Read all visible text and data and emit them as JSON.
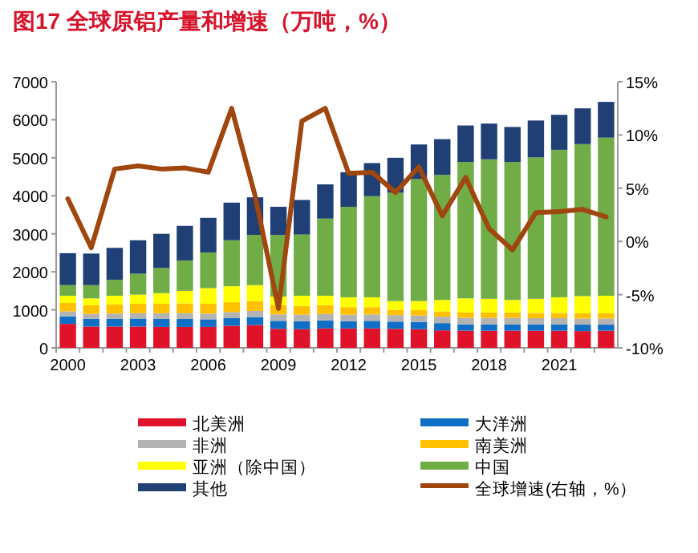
{
  "chart_data": {
    "type": "bar",
    "title": "图17 全球原铝产量和增速（万吨，%）",
    "stacked": true,
    "legend": "bottom",
    "grid": false,
    "categories": [
      "2000",
      null,
      null,
      "2003",
      null,
      null,
      "2006",
      null,
      null,
      "2009",
      null,
      null,
      "2012",
      null,
      null,
      "2015",
      null,
      null,
      "2018",
      null,
      null,
      "2021",
      null,
      null
    ],
    "series": [
      {
        "name": "北美洲",
        "color": "#e0122a",
        "values": [
          630,
          560,
          560,
          560,
          550,
          550,
          550,
          580,
          600,
          500,
          490,
          510,
          510,
          510,
          500,
          490,
          460,
          450,
          450,
          450,
          450,
          450,
          440,
          450
        ]
      },
      {
        "name": "大洋洲",
        "color": "#0f6fc6",
        "values": [
          200,
          200,
          200,
          210,
          210,
          210,
          200,
          200,
          210,
          210,
          210,
          210,
          190,
          200,
          190,
          190,
          190,
          170,
          170,
          170,
          170,
          170,
          170,
          160
        ]
      },
      {
        "name": "非洲",
        "color": "#b3b3b3",
        "values": [
          130,
          130,
          140,
          140,
          150,
          150,
          150,
          160,
          160,
          170,
          170,
          170,
          170,
          170,
          170,
          170,
          170,
          170,
          170,
          170,
          160,
          160,
          160,
          160
        ]
      },
      {
        "name": "南美洲",
        "color": "#ffc000",
        "values": [
          220,
          230,
          240,
          250,
          250,
          260,
          260,
          260,
          260,
          240,
          230,
          230,
          200,
          190,
          140,
          140,
          140,
          140,
          140,
          140,
          140,
          140,
          140,
          140
        ]
      },
      {
        "name": "亚洲（除中国）",
        "color": "#ffff00",
        "values": [
          190,
          180,
          230,
          240,
          280,
          330,
          410,
          420,
          420,
          230,
          270,
          250,
          260,
          260,
          230,
          240,
          300,
          370,
          360,
          330,
          370,
          410,
          450,
          460
        ]
      },
      {
        "name": "中国",
        "color": "#70ad47",
        "values": [
          280,
          350,
          420,
          550,
          660,
          800,
          940,
          1210,
          1320,
          1620,
          1610,
          2030,
          2380,
          2660,
          2850,
          3210,
          3290,
          3590,
          3670,
          3630,
          3720,
          3880,
          4000,
          4160
        ]
      },
      {
        "name": "其他",
        "color": "#1f3f75",
        "values": [
          840,
          830,
          840,
          880,
          900,
          910,
          910,
          990,
          990,
          740,
          910,
          900,
          910,
          870,
          920,
          910,
          940,
          960,
          940,
          920,
          970,
          920,
          940,
          940
        ]
      },
      {
        "name": "全球增速(右轴，%）",
        "type": "line",
        "axis": "y2",
        "color": "#a0460f",
        "values": [
          4.0,
          -0.6,
          6.8,
          7.1,
          6.8,
          6.9,
          6.5,
          12.5,
          4.3,
          -6.3,
          11.3,
          12.5,
          6.4,
          6.5,
          4.6,
          7.0,
          2.4,
          6.0,
          1.2,
          -0.8,
          2.7,
          2.8,
          3.0,
          2.3
        ]
      }
    ],
    "ylim": [
      0,
      7000
    ],
    "yticks": [
      0,
      1000,
      2000,
      3000,
      4000,
      5000,
      6000,
      7000
    ],
    "y2lim": [
      -10,
      15
    ],
    "y2ticks": [
      {
        "value": -10,
        "label": "-10%"
      },
      {
        "value": -5,
        "label": "-5%"
      },
      {
        "value": 0,
        "label": "0%"
      },
      {
        "value": 5,
        "label": "5%"
      },
      {
        "value": 10,
        "label": "10%"
      },
      {
        "value": 15,
        "label": "15%"
      }
    ]
  }
}
